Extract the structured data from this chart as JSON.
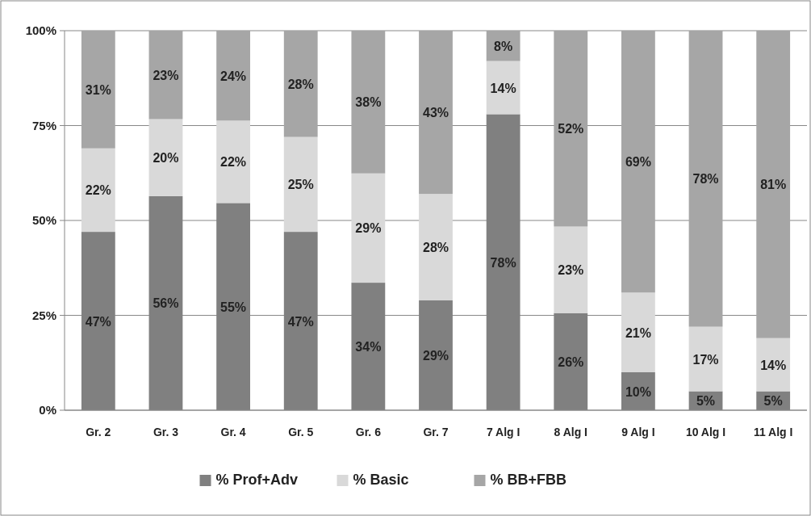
{
  "chart_data": {
    "type": "bar",
    "stacked": true,
    "categories": [
      "Gr. 2",
      "Gr. 3",
      "Gr. 4",
      "Gr. 5",
      "Gr. 6",
      "Gr. 7",
      "7 Alg I",
      "8 Alg I",
      "9 Alg I",
      "10 Alg I",
      "11 Alg I"
    ],
    "series": [
      {
        "name": "% Prof+Adv",
        "color": "#808080",
        "values": [
          47,
          56.4,
          54.6,
          47,
          33.6,
          29,
          78,
          25.6,
          10,
          5,
          5
        ],
        "value_labels": [
          "47%",
          "56%",
          "55%",
          "47%",
          "34%",
          "29%",
          "78%",
          "26%",
          "10%",
          "5%",
          "5%"
        ]
      },
      {
        "name": "% Basic",
        "color": "#d9d9d9",
        "values": [
          22,
          20.3,
          21.7,
          25,
          28.8,
          28,
          14,
          22.8,
          21,
          17,
          14
        ],
        "value_labels": [
          "22%",
          "20%",
          "22%",
          "25%",
          "29%",
          "28%",
          "14%",
          "23%",
          "21%",
          "17%",
          "14%"
        ]
      },
      {
        "name": "% BB+FBB",
        "color": "#a6a6a6",
        "values": [
          31,
          23.3,
          23.7,
          28,
          37.6,
          43,
          8,
          51.6,
          69,
          78,
          81
        ],
        "value_labels": [
          "31%",
          "23%",
          "24%",
          "28%",
          "38%",
          "43%",
          "8%",
          "52%",
          "69%",
          "78%",
          "81%"
        ]
      }
    ],
    "ylim": [
      0,
      100
    ],
    "yticks": [
      {
        "value": 0,
        "label": "0%"
      },
      {
        "value": 25,
        "label": "25%"
      },
      {
        "value": 50,
        "label": "50%"
      },
      {
        "value": 75,
        "label": "75%"
      },
      {
        "value": 100,
        "label": "100%"
      }
    ],
    "grid": "y",
    "legend": "bottom"
  }
}
